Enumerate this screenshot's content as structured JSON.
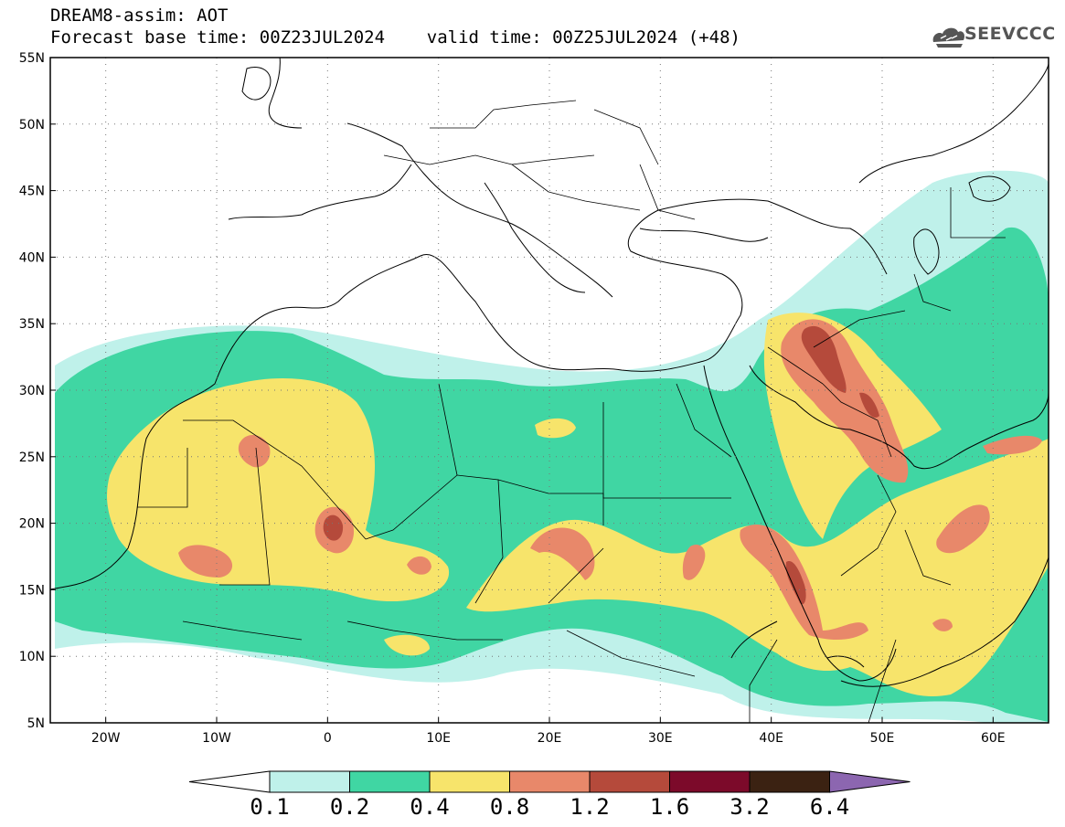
{
  "header": {
    "line1": "DREAM8-assim: AOT",
    "line2": "Forecast base time: 00Z23JUL2024    valid time: 00Z25JUL2024 (+48)"
  },
  "logo": {
    "text": "SEEVCCC",
    "icon": "cloud-icon"
  },
  "map": {
    "lon_range": [
      -25,
      65
    ],
    "lat_range": [
      5,
      55
    ],
    "lat_ticks": [
      "55N",
      "50N",
      "45N",
      "40N",
      "35N",
      "30N",
      "25N",
      "20N",
      "15N",
      "10N",
      "5N"
    ],
    "lon_ticks": [
      "20W",
      "10W",
      "0",
      "10E",
      "20E",
      "30E",
      "40E",
      "50E",
      "60E"
    ],
    "grid": true
  },
  "colorbar": {
    "labels": [
      "0.1",
      "0.2",
      "0.4",
      "0.8",
      "1.2",
      "1.6",
      "3.2",
      "6.4"
    ],
    "colors": [
      "#ffffff",
      "#bff1ea",
      "#40d6a3",
      "#f7e46b",
      "#e8886a",
      "#b54a3b",
      "#7c0a2a",
      "#3b2212",
      "#8c66b0"
    ]
  },
  "palette": {
    "lev1": "#bff1ea",
    "lev2": "#40d6a3",
    "lev3": "#f7e46b",
    "lev4": "#e8886a",
    "lev5": "#b54a3b"
  }
}
